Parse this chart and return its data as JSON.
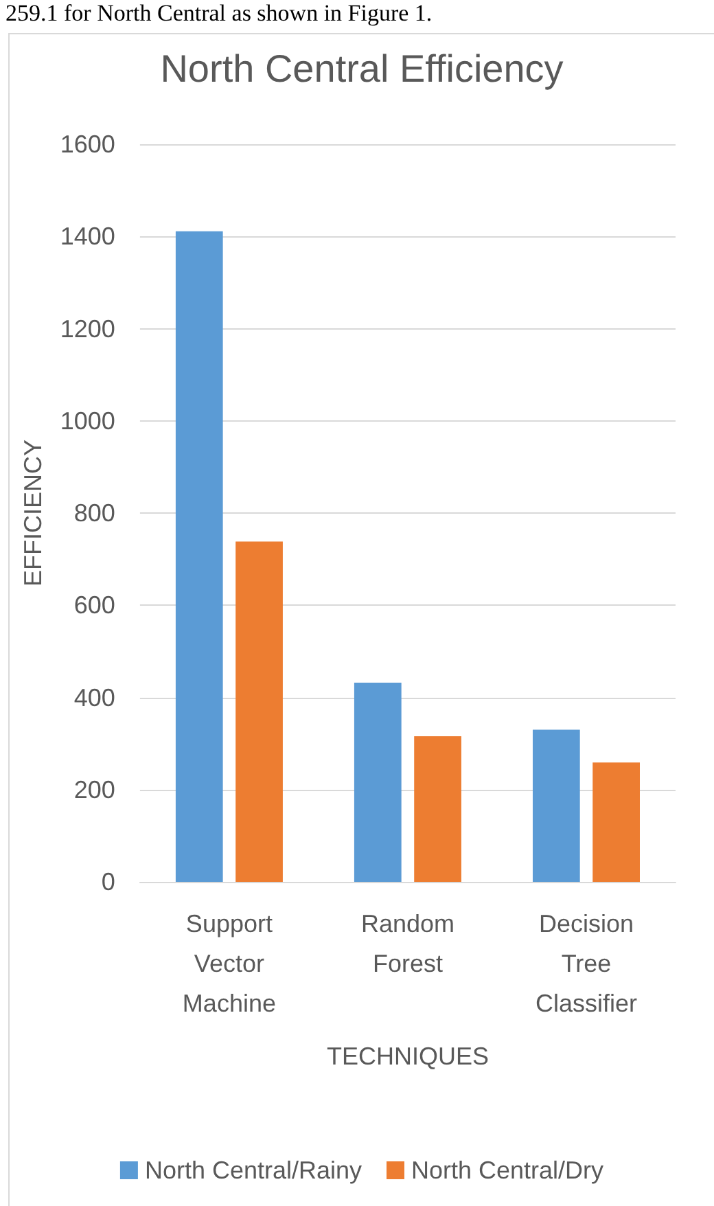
{
  "chart_data": {
    "type": "bar",
    "title": "North Central Efficiency",
    "xlabel": "TECHNIQUES",
    "ylabel": "EFFICIENCY",
    "annotations": [
      "259.1 for North Central as shown in Figure 1."
    ],
    "categories": [
      "Support Vector Machine",
      "Random Forest",
      "Decision Tree Classifier"
    ],
    "series": [
      {
        "name": "North Central/Rainy",
        "color": "#5b9bd5",
        "values": [
          1411,
          432,
          330
        ]
      },
      {
        "name": "North Central/Dry",
        "color": "#ed7d31",
        "values": [
          738,
          316,
          259
        ]
      }
    ],
    "ylim": [
      0,
      1600
    ],
    "yticks": [
      0,
      200,
      400,
      600,
      800,
      1000,
      1200,
      1400,
      1600
    ],
    "grid": "y",
    "legend": "bottom"
  }
}
